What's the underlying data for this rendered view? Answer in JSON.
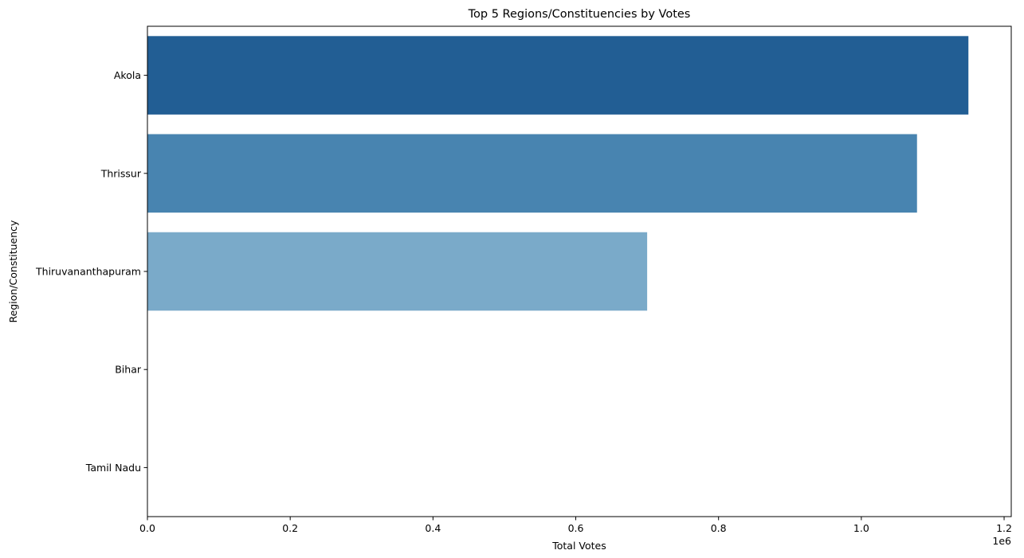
{
  "chart_data": {
    "type": "bar",
    "orientation": "horizontal",
    "title": "Top 5 Regions/Constituencies by Votes",
    "xlabel": "Total Votes",
    "ylabel": "Region/Constituency",
    "x_scale_label": "1e6",
    "categories": [
      "Akola",
      "Thrissur",
      "Thiruvananthapuram",
      "Bihar",
      "Tamil Nadu"
    ],
    "values": [
      1150000,
      1078000,
      700000,
      0,
      0
    ],
    "colors": [
      "#225e94",
      "#4884b0",
      "#7aaac9",
      "#c1d8ea",
      "#e3eef8"
    ],
    "xlim": [
      0,
      1210000
    ],
    "xticks": [
      0,
      200000,
      400000,
      600000,
      800000,
      1000000,
      1200000
    ],
    "xtick_labels": [
      "0.0",
      "0.2",
      "0.4",
      "0.6",
      "0.8",
      "1.0",
      "1.2"
    ],
    "grid": false,
    "legend": "none"
  }
}
